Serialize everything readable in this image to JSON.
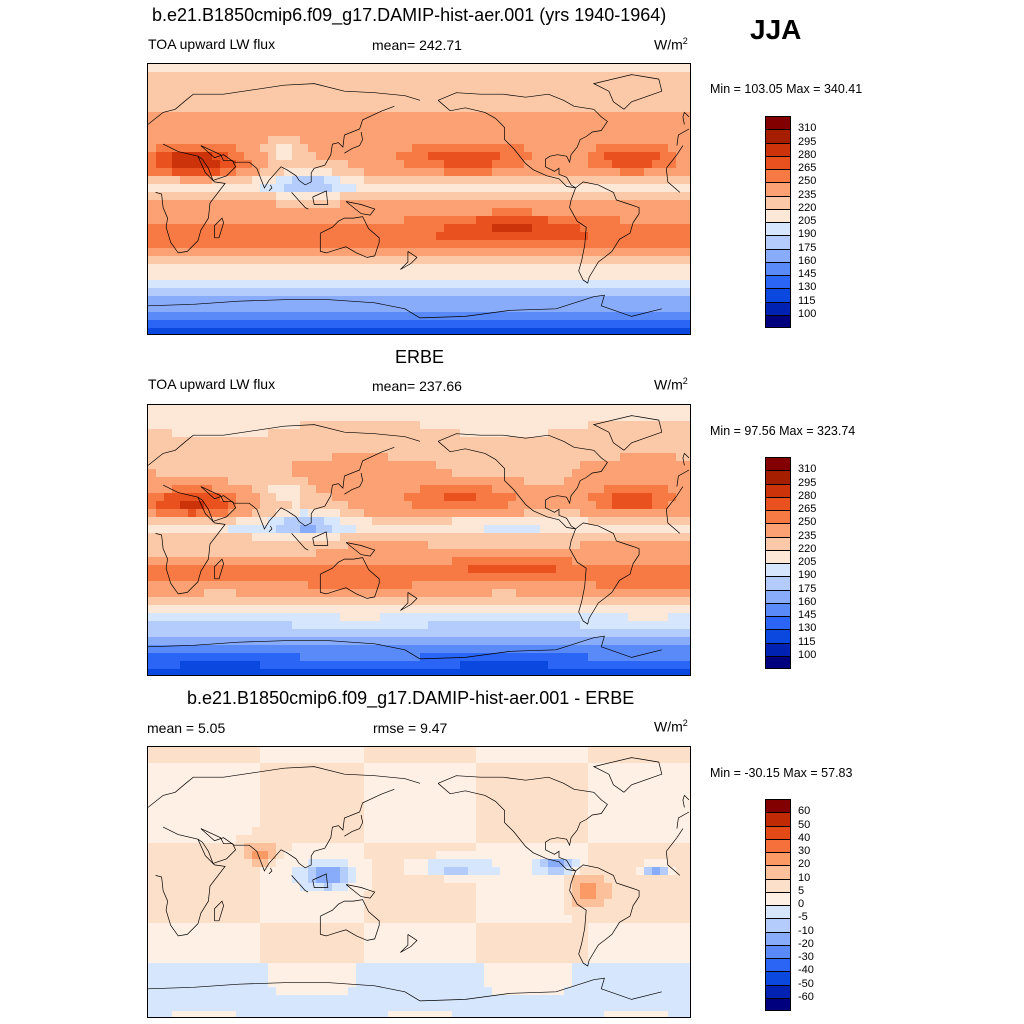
{
  "season": "JJA",
  "colors": {
    "flux": [
      "#00007f",
      "#0022b2",
      "#0b48e0",
      "#2b65f5",
      "#5a89f8",
      "#89acfa",
      "#b4ccfb",
      "#d6e6fc",
      "#fde7d6",
      "#fcc9a8",
      "#fba173",
      "#f77a44",
      "#e9521f",
      "#cc330a",
      "#a51e00",
      "#820000"
    ],
    "diff": [
      "#00007f",
      "#0022b2",
      "#0b48e0",
      "#2b65f5",
      "#5a89f8",
      "#89acfa",
      "#b4ccfb",
      "#d6e6fc",
      "#fef0e4",
      "#fde0c9",
      "#fcc09a",
      "#fb9a65",
      "#f5703a",
      "#e44a18",
      "#c02a04",
      "#820000"
    ],
    "coast": "#000000"
  },
  "panels": [
    {
      "title": "b.e21.B1850cmip6.f09_g17.DAMIP-hist-aer.001 (yrs 1940-1964)",
      "left": "TOA upward LW flux",
      "center": "mean= 242.71",
      "units": "W/m",
      "units_sup": "2",
      "minmax": "Min = 103.05 Max = 340.41",
      "scale": "flux",
      "ticks": [
        "310",
        "295",
        "280",
        "265",
        "250",
        "235",
        "220",
        "205",
        "190",
        "175",
        "160",
        "145",
        "130",
        "115",
        "100"
      ]
    },
    {
      "title": "ERBE",
      "left": "TOA upward LW flux",
      "center": "mean= 237.66",
      "units": "W/m",
      "units_sup": "2",
      "minmax": "Min =  97.56 Max = 323.74",
      "scale": "flux",
      "ticks": [
        "310",
        "295",
        "280",
        "265",
        "250",
        "235",
        "220",
        "205",
        "190",
        "175",
        "160",
        "145",
        "130",
        "115",
        "100"
      ]
    },
    {
      "title": "b.e21.B1850cmip6.f09_g17.DAMIP-hist-aer.001 - ERBE",
      "left": "mean =   5.05",
      "center": "rmse =   9.47",
      "units": "W/m",
      "units_sup": "2",
      "minmax": "Min = -30.15 Max =  57.83",
      "scale": "diff",
      "ticks": [
        "60",
        "50",
        "40",
        "30",
        "20",
        "10",
        "5",
        "0",
        "-5",
        "-10",
        "-20",
        "-30",
        "-40",
        "-50",
        "-60"
      ]
    }
  ]
}
